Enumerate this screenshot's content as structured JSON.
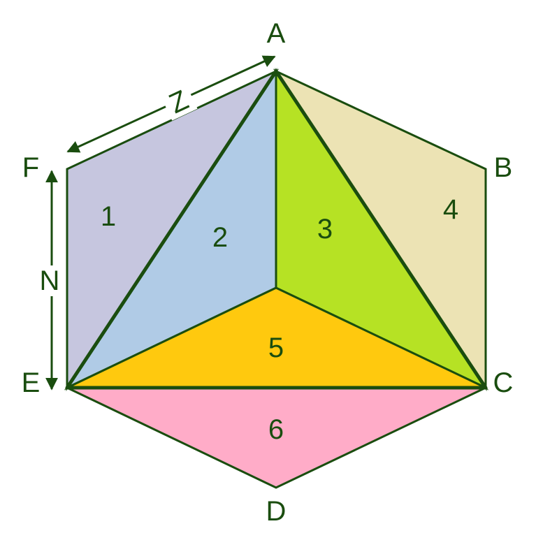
{
  "vertices": {
    "A": "A",
    "B": "B",
    "C": "C",
    "D": "D",
    "E": "E",
    "F": "F"
  },
  "regions": [
    {
      "label": "1",
      "color": "#c6c6df"
    },
    {
      "label": "2",
      "color": "#b0cbe6"
    },
    {
      "label": "3",
      "color": "#b6e224"
    },
    {
      "label": "4",
      "color": "#ece3b4"
    },
    {
      "label": "5",
      "color": "#ffc90e"
    },
    {
      "label": "6",
      "color": "#ffacc8"
    }
  ],
  "measures": {
    "top_edge": "Z",
    "left_edge": "N"
  },
  "colors": {
    "outline": "#1a4d0f",
    "background": "#ffffff"
  }
}
